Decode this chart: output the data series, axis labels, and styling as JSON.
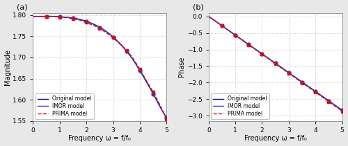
{
  "subplot_a": {
    "label": "(a)",
    "xlabel": "Frequency ω = f/f₀",
    "ylabel": "Magnitude",
    "xlim": [
      0,
      5
    ],
    "ylim": [
      1.55,
      1.805
    ],
    "yticks": [
      1.55,
      1.6,
      1.65,
      1.7,
      1.75,
      1.8
    ],
    "xticks": [
      0,
      1,
      2,
      3,
      4,
      5
    ],
    "original_x": [
      0,
      0.25,
      0.5,
      0.75,
      1.0,
      1.25,
      1.5,
      1.75,
      2.0,
      2.25,
      2.5,
      2.75,
      3.0,
      3.25,
      3.5,
      3.75,
      4.0,
      4.25,
      4.5,
      4.75,
      5.0
    ],
    "original_y": [
      1.797,
      1.797,
      1.797,
      1.797,
      1.796,
      1.795,
      1.793,
      1.79,
      1.785,
      1.779,
      1.771,
      1.761,
      1.748,
      1.733,
      1.715,
      1.694,
      1.669,
      1.642,
      1.614,
      1.584,
      1.558
    ],
    "imor_x": [
      0.5,
      1.0,
      1.5,
      2.0,
      2.5,
      3.0,
      3.5,
      4.0,
      4.5,
      5.0
    ],
    "imor_y": [
      1.797,
      1.796,
      1.793,
      1.785,
      1.771,
      1.748,
      1.715,
      1.669,
      1.614,
      1.558
    ],
    "prima_x": [
      0.5,
      1.0,
      1.5,
      2.0,
      2.5,
      3.0,
      3.5,
      4.0,
      4.5,
      5.0
    ],
    "prima_y": [
      1.797,
      1.795,
      1.791,
      1.783,
      1.769,
      1.747,
      1.717,
      1.672,
      1.618,
      1.554
    ],
    "original_color": "#00008B",
    "imor_color": "#3333BB",
    "prima_color": "#CC1111",
    "original_label": "Original model",
    "imor_label": "IMOR model",
    "prima_label": "PRIMA model",
    "grid_color": "#bbbbbb",
    "grid_linestyle": ":"
  },
  "subplot_b": {
    "label": "(b)",
    "xlabel": "Frequency ω = f/f₀",
    "ylabel": "Phase",
    "xlim": [
      0,
      5
    ],
    "ylim": [
      -3.15,
      0.1
    ],
    "yticks": [
      0,
      -0.5,
      -1.0,
      -1.5,
      -2.0,
      -2.5,
      -3.0
    ],
    "xticks": [
      0,
      1,
      2,
      3,
      4,
      5
    ],
    "original_x": [
      0,
      0.25,
      0.5,
      0.75,
      1.0,
      1.25,
      1.5,
      1.75,
      2.0,
      2.25,
      2.5,
      2.75,
      3.0,
      3.25,
      3.5,
      3.75,
      4.0,
      4.25,
      4.5,
      4.75,
      5.0
    ],
    "original_y": [
      0.0,
      -0.155,
      -0.31,
      -0.465,
      -0.62,
      -0.775,
      -0.93,
      -1.085,
      -1.24,
      -1.395,
      -1.55,
      -1.705,
      -1.86,
      -2.015,
      -2.05,
      -2.12,
      -2.07,
      -2.22,
      -2.6,
      -2.73,
      -2.83
    ],
    "imor_x": [
      0.5,
      1.0,
      1.5,
      2.0,
      2.5,
      3.0,
      3.5,
      4.0,
      4.5,
      5.0
    ],
    "imor_y": [
      -0.31,
      -0.62,
      -0.93,
      -1.24,
      -1.55,
      -1.86,
      -2.05,
      -2.07,
      -2.6,
      -2.83
    ],
    "prima_x": [
      0.5,
      1.0,
      1.5,
      2.0,
      2.5,
      3.0,
      3.5,
      4.0,
      4.5,
      5.0
    ],
    "prima_y": [
      -0.31,
      -0.62,
      -0.93,
      -1.24,
      -1.55,
      -1.86,
      -2.05,
      -2.07,
      -2.6,
      -2.86
    ],
    "original_color": "#00008B",
    "imor_color": "#3333BB",
    "prima_color": "#CC1111",
    "original_label": "Original model",
    "imor_label": "IMOR model",
    "prima_label": "PRIMA model",
    "grid_color": "#bbbbbb",
    "grid_linestyle": ":"
  },
  "axes_facecolor": "#ffffff",
  "fig_facecolor": "#e8e8e8"
}
